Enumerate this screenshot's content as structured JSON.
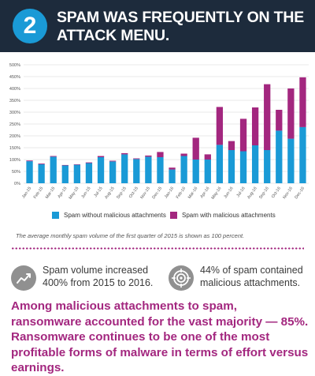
{
  "header": {
    "number": "2",
    "title": "SPAM WAS FREQUENTLY ON THE ATTACK MENU."
  },
  "colors": {
    "header_bg": "#1d2b3c",
    "badge": "#1a9ad6",
    "series_without": "#1a9ad6",
    "series_with": "#a3277f"
  },
  "chart_data": {
    "type": "bar",
    "stacked": true,
    "categories": [
      "Jan-15",
      "Feb-15",
      "Mar-15",
      "Apr-15",
      "May-15",
      "Jun-15",
      "Jul-15",
      "Aug-15",
      "Sep-15",
      "Oct-15",
      "Nov-15",
      "Dec-15",
      "Jan-16",
      "Feb-16",
      "Mar-16",
      "Apr-16",
      "May-16",
      "Jun-16",
      "Jul-16",
      "Aug-16",
      "Sep-16",
      "Oct-16",
      "Nov-16",
      "Dec-16"
    ],
    "y_ticks": [
      "0%",
      "50%",
      "100%",
      "150%",
      "200%",
      "250%",
      "300%",
      "350%",
      "400%",
      "450%",
      "500%"
    ],
    "ylim": [
      0,
      500
    ],
    "grid": true,
    "legend_position": "bottom",
    "series": [
      {
        "name": "Spam without malicious attachments",
        "color": "#1a9ad6",
        "values": [
          93,
          80,
          112,
          75,
          78,
          85,
          110,
          92,
          122,
          102,
          112,
          110,
          58,
          115,
          100,
          100,
          162,
          140,
          135,
          160,
          140,
          222,
          188,
          237
        ]
      },
      {
        "name": "Spam with malicious attachments",
        "color": "#a3277f",
        "values": [
          3,
          3,
          3,
          2,
          2,
          3,
          5,
          3,
          5,
          3,
          5,
          22,
          8,
          10,
          92,
          22,
          160,
          38,
          137,
          160,
          278,
          88,
          212,
          210
        ]
      }
    ],
    "note": "The average monthly spam volume of the first quarter of 2015 is shown as 100 percent."
  },
  "stats": [
    {
      "icon": "trend-up-icon",
      "text_line1": "Spam volume increased",
      "text_line2": "400% from 2015 to 2016."
    },
    {
      "icon": "target-icon",
      "text_line1": "44% of spam contained",
      "text_line2": "malicious attachments."
    }
  ],
  "bottom_text": "Among malicious attachments to spam, ransomware accounted for the vast majority — 85%. Ransomware continues to be one of the most profitable forms of malware in terms of effort versus earnings."
}
